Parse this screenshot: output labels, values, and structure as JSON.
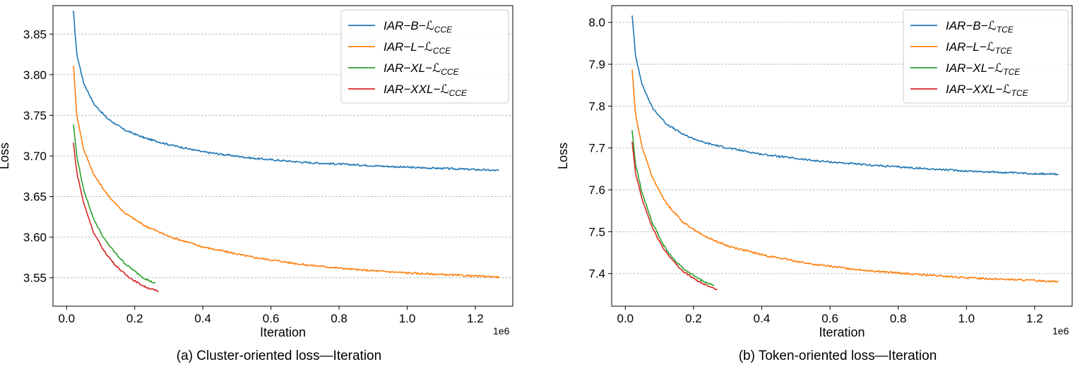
{
  "chart_data": [
    {
      "type": "line",
      "panel": "a",
      "caption": "(a) Cluster-oriented loss—Iteration",
      "xlabel": "Iteration",
      "ylabel": "Loss",
      "x_offset_label": "1e6",
      "xlim": [
        -0.04,
        1.31
      ],
      "ylim": [
        3.515,
        3.885
      ],
      "xticks": [
        0.0,
        0.2,
        0.4,
        0.6,
        0.8,
        1.0,
        1.2
      ],
      "xtick_labels": [
        "0.0",
        "0.2",
        "0.4",
        "0.6",
        "0.8",
        "1.0",
        "1.2"
      ],
      "yticks": [
        3.55,
        3.6,
        3.65,
        3.7,
        3.75,
        3.8,
        3.85
      ],
      "ytick_labels": [
        "3.55",
        "3.60",
        "3.65",
        "3.70",
        "3.75",
        "3.80",
        "3.85"
      ],
      "grid": "y-dashed",
      "legend_position": "top-right",
      "series": [
        {
          "name": "IAR−B−ℒ",
          "sub": "CCE",
          "color": "#1f77b4",
          "x": [
            0.02,
            0.03,
            0.05,
            0.08,
            0.12,
            0.17,
            0.23,
            0.3,
            0.4,
            0.55,
            0.7,
            0.85,
            1.0,
            1.15,
            1.27
          ],
          "y": [
            3.878,
            3.825,
            3.79,
            3.764,
            3.746,
            3.732,
            3.722,
            3.714,
            3.705,
            3.697,
            3.692,
            3.689,
            3.686,
            3.684,
            3.682
          ]
        },
        {
          "name": "IAR−L−ℒ",
          "sub": "CCE",
          "color": "#ff7f0e",
          "x": [
            0.02,
            0.03,
            0.05,
            0.08,
            0.12,
            0.17,
            0.23,
            0.3,
            0.4,
            0.55,
            0.7,
            0.85,
            1.0,
            1.15,
            1.27
          ],
          "y": [
            3.812,
            3.75,
            3.708,
            3.677,
            3.652,
            3.63,
            3.614,
            3.601,
            3.588,
            3.575,
            3.566,
            3.56,
            3.556,
            3.553,
            3.551
          ]
        },
        {
          "name": "IAR−XL−ℒ",
          "sub": "CCE",
          "color": "#2ca02c",
          "x": [
            0.02,
            0.03,
            0.05,
            0.08,
            0.11,
            0.14,
            0.17,
            0.2,
            0.23,
            0.26
          ],
          "y": [
            3.739,
            3.7,
            3.658,
            3.622,
            3.598,
            3.582,
            3.568,
            3.558,
            3.549,
            3.543
          ]
        },
        {
          "name": "IAR−XXL−ℒ",
          "sub": "CCE",
          "color": "#d62728",
          "x": [
            0.02,
            0.03,
            0.05,
            0.08,
            0.11,
            0.14,
            0.17,
            0.2,
            0.23,
            0.27
          ],
          "y": [
            3.716,
            3.68,
            3.642,
            3.605,
            3.583,
            3.567,
            3.555,
            3.546,
            3.539,
            3.533
          ]
        }
      ]
    },
    {
      "type": "line",
      "panel": "b",
      "caption": "(b) Token-oriented loss—Iteration",
      "xlabel": "Iteration",
      "ylabel": "Loss",
      "x_offset_label": "1e6",
      "xlim": [
        -0.04,
        1.31
      ],
      "ylim": [
        7.322,
        8.04
      ],
      "xticks": [
        0.0,
        0.2,
        0.4,
        0.6,
        0.8,
        1.0,
        1.2
      ],
      "xtick_labels": [
        "0.0",
        "0.2",
        "0.4",
        "0.6",
        "0.8",
        "1.0",
        "1.2"
      ],
      "yticks": [
        7.4,
        7.5,
        7.6,
        7.7,
        7.8,
        7.9,
        8.0
      ],
      "ytick_labels": [
        "7.4",
        "7.5",
        "7.6",
        "7.7",
        "7.8",
        "7.9",
        "8.0"
      ],
      "grid": "y-dashed",
      "legend_position": "top-right",
      "series": [
        {
          "name": "IAR−B−ℒ",
          "sub": "TCE",
          "color": "#1f77b4",
          "x": [
            0.02,
            0.03,
            0.05,
            0.08,
            0.12,
            0.17,
            0.23,
            0.3,
            0.4,
            0.55,
            0.7,
            0.85,
            1.0,
            1.15,
            1.27
          ],
          "y": [
            8.018,
            7.92,
            7.85,
            7.795,
            7.758,
            7.732,
            7.713,
            7.7,
            7.685,
            7.67,
            7.66,
            7.652,
            7.645,
            7.64,
            7.637
          ]
        },
        {
          "name": "IAR−L−ℒ",
          "sub": "TCE",
          "color": "#ff7f0e",
          "x": [
            0.02,
            0.03,
            0.05,
            0.08,
            0.12,
            0.17,
            0.23,
            0.3,
            0.4,
            0.55,
            0.7,
            0.85,
            1.0,
            1.15,
            1.27
          ],
          "y": [
            7.888,
            7.78,
            7.7,
            7.628,
            7.568,
            7.522,
            7.49,
            7.466,
            7.445,
            7.422,
            7.408,
            7.398,
            7.39,
            7.385,
            7.381
          ]
        },
        {
          "name": "IAR−XL−ℒ",
          "sub": "TCE",
          "color": "#2ca02c",
          "x": [
            0.02,
            0.03,
            0.05,
            0.08,
            0.11,
            0.14,
            0.17,
            0.2,
            0.23,
            0.26
          ],
          "y": [
            7.742,
            7.66,
            7.59,
            7.52,
            7.47,
            7.436,
            7.412,
            7.395,
            7.381,
            7.371
          ]
        },
        {
          "name": "IAR−XXL−ℒ",
          "sub": "TCE",
          "color": "#d62728",
          "x": [
            0.02,
            0.03,
            0.05,
            0.08,
            0.11,
            0.14,
            0.17,
            0.2,
            0.23,
            0.27
          ],
          "y": [
            7.713,
            7.64,
            7.575,
            7.508,
            7.462,
            7.43,
            7.405,
            7.388,
            7.375,
            7.362
          ]
        }
      ]
    }
  ]
}
